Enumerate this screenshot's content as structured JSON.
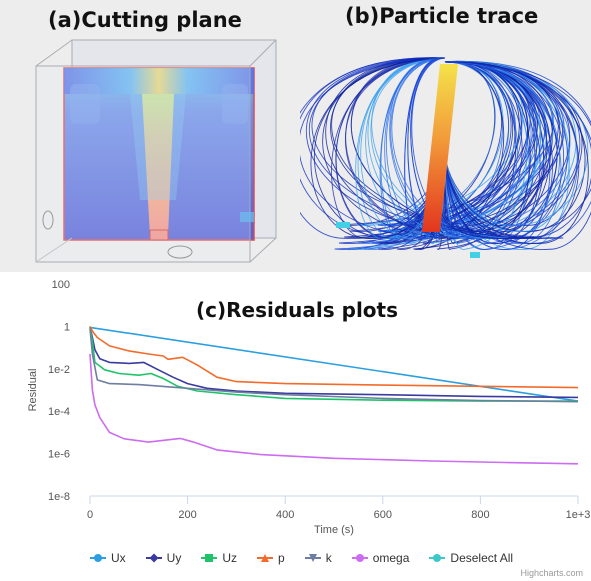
{
  "panels": {
    "a_title": "(a)Cutting plane",
    "b_title": "(b)Particle trace",
    "c_title": "(c)Residuals plots"
  },
  "chart_data": {
    "type": "line",
    "title": "(c)Residuals plots",
    "xlabel": "Time (s)",
    "ylabel": "Residual",
    "x_ticks": [
      "0",
      "200",
      "400",
      "600",
      "800",
      "1e+3"
    ],
    "y_ticks": [
      "100",
      "1",
      "1e-2",
      "1e-4",
      "1e-6",
      "1e-8"
    ],
    "xlim": [
      0,
      1000
    ],
    "ylim": [
      1e-08,
      100
    ],
    "y_scale": "log",
    "grid": false,
    "legend_position": "bottom",
    "series": [
      {
        "name": "Ux",
        "color": "#2b9fe0",
        "marker": "circle",
        "points": [
          [
            0,
            0.9
          ],
          [
            1000,
            0.0003
          ]
        ]
      },
      {
        "name": "Uy",
        "color": "#3a3aa0",
        "marker": "diamond",
        "points": [
          [
            0,
            0.95
          ],
          [
            5,
            0.3
          ],
          [
            10,
            0.08
          ],
          [
            20,
            0.03
          ],
          [
            40,
            0.02
          ],
          [
            80,
            0.018
          ],
          [
            110,
            0.02
          ],
          [
            140,
            0.009
          ],
          [
            170,
            0.004
          ],
          [
            200,
            0.002
          ],
          [
            240,
            0.0012
          ],
          [
            300,
            0.0009
          ],
          [
            400,
            0.0007
          ],
          [
            600,
            0.0006
          ],
          [
            800,
            0.0005
          ],
          [
            1000,
            0.00045
          ]
        ]
      },
      {
        "name": "Uz",
        "color": "#1fc46a",
        "marker": "square",
        "points": [
          [
            0,
            0.95
          ],
          [
            5,
            0.2
          ],
          [
            10,
            0.02
          ],
          [
            30,
            0.009
          ],
          [
            60,
            0.006
          ],
          [
            100,
            0.005
          ],
          [
            125,
            0.006
          ],
          [
            150,
            0.0035
          ],
          [
            180,
            0.0015
          ],
          [
            220,
            0.0009
          ],
          [
            300,
            0.0006
          ],
          [
            400,
            0.0004
          ],
          [
            600,
            0.00033
          ],
          [
            800,
            0.0003
          ],
          [
            1000,
            0.0003
          ]
        ]
      },
      {
        "name": "p",
        "color": "#f26b2a",
        "marker": "triangle",
        "points": [
          [
            0,
            1.0
          ],
          [
            5,
            0.6
          ],
          [
            15,
            0.3
          ],
          [
            40,
            0.12
          ],
          [
            80,
            0.07
          ],
          [
            120,
            0.05
          ],
          [
            150,
            0.04
          ],
          [
            160,
            0.028
          ],
          [
            190,
            0.035
          ],
          [
            220,
            0.015
          ],
          [
            260,
            0.004
          ],
          [
            300,
            0.0025
          ],
          [
            400,
            0.002
          ],
          [
            600,
            0.0017
          ],
          [
            800,
            0.0015
          ],
          [
            1000,
            0.0013
          ]
        ]
      },
      {
        "name": "k",
        "color": "#6d7ea2",
        "marker": "triangle-down",
        "points": [
          [
            0,
            0.8
          ],
          [
            5,
            0.05
          ],
          [
            15,
            0.003
          ],
          [
            40,
            0.002
          ],
          [
            100,
            0.0018
          ],
          [
            200,
            0.0012
          ],
          [
            300,
            0.0008
          ],
          [
            400,
            0.0006
          ],
          [
            600,
            0.0004
          ],
          [
            800,
            0.00032
          ],
          [
            1000,
            0.00028
          ]
        ]
      },
      {
        "name": "omega",
        "color": "#cc6cf0",
        "marker": "circle",
        "points": [
          [
            0,
            0.05
          ],
          [
            5,
            0.001
          ],
          [
            10,
            0.0002
          ],
          [
            20,
            5e-05
          ],
          [
            40,
            1e-05
          ],
          [
            70,
            5e-06
          ],
          [
            120,
            3.5e-06
          ],
          [
            160,
            4.5e-06
          ],
          [
            185,
            5.2e-06
          ],
          [
            210,
            3.6e-06
          ],
          [
            260,
            1.5e-06
          ],
          [
            350,
            9e-07
          ],
          [
            500,
            6e-07
          ],
          [
            700,
            4.5e-07
          ],
          [
            850,
            3.8e-07
          ],
          [
            1000,
            3.3e-07
          ]
        ]
      }
    ],
    "deselect_label": "Deselect All",
    "deselect_color": "#3cc8c8",
    "credit": "Highcharts.com"
  }
}
